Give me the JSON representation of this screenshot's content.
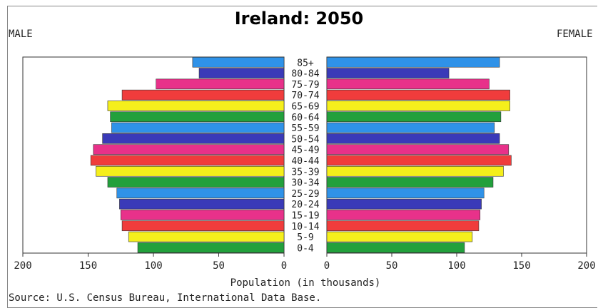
{
  "title": "Ireland:  2050",
  "male_label": "MALE",
  "female_label": "FEMALE",
  "source": "Source: U.S. Census Bureau, International Data Base.",
  "chart_data": {
    "type": "bar",
    "orientation": "horizontal-population-pyramid",
    "title": "Ireland:  2050",
    "xlabel": "Population (in thousands)",
    "categories": [
      "0-4",
      "5-9",
      "10-14",
      "15-19",
      "20-24",
      "25-29",
      "30-34",
      "35-39",
      "40-44",
      "45-49",
      "50-54",
      "55-59",
      "60-64",
      "65-69",
      "70-74",
      "75-79",
      "80-84",
      "85+"
    ],
    "series": [
      {
        "name": "MALE",
        "values": [
          112,
          119,
          124,
          125,
          126,
          128,
          135,
          144,
          148,
          146,
          139,
          132,
          133,
          135,
          124,
          98,
          65,
          70
        ]
      },
      {
        "name": "FEMALE",
        "values": [
          106,
          112,
          117,
          118,
          119,
          121,
          128,
          136,
          142,
          140,
          133,
          129,
          134,
          141,
          141,
          125,
          94,
          133
        ]
      }
    ],
    "bar_colors": [
      "#22a03c",
      "#f5ef1c",
      "#f03c3c",
      "#e8318a",
      "#3a3ab8",
      "#2f92e8"
    ],
    "male_ticks": [
      "200",
      "150",
      "100",
      "50",
      "0"
    ],
    "female_ticks": [
      "0",
      "50",
      "100",
      "150",
      "200"
    ],
    "xlim": [
      0,
      200
    ]
  }
}
